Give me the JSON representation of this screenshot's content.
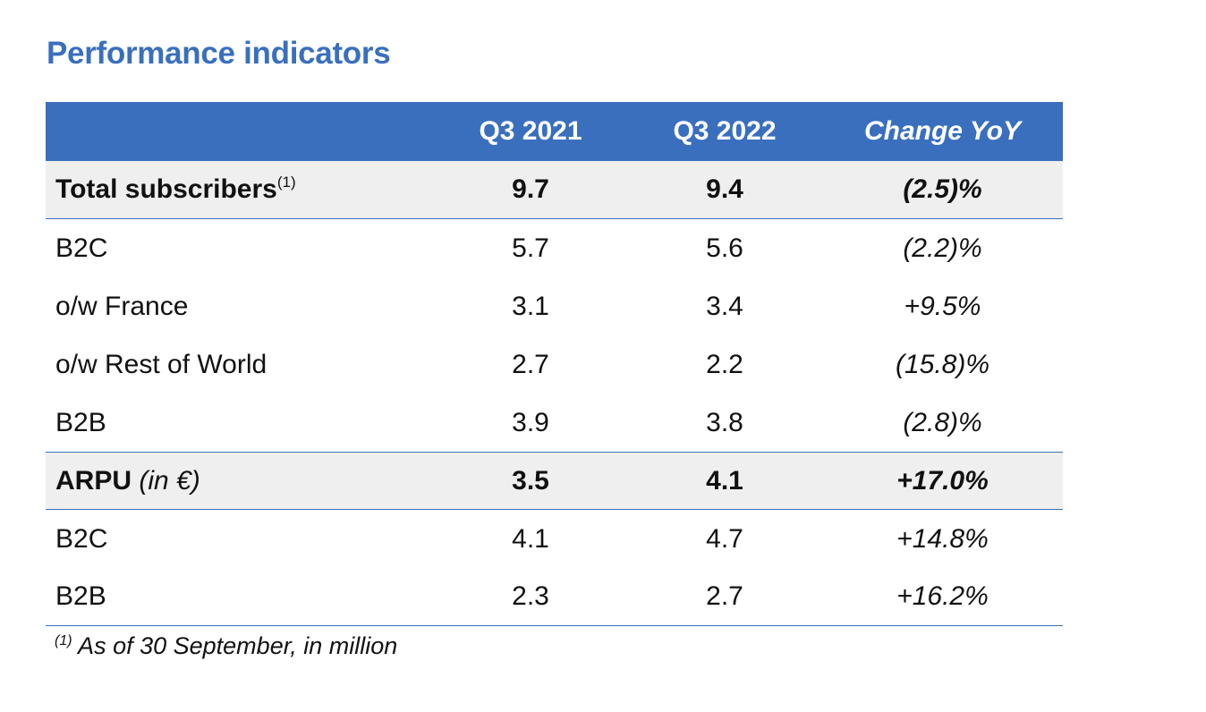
{
  "title": "Performance indicators",
  "columns": {
    "label": "",
    "q3_2021": "Q3 2021",
    "q3_2022": "Q3 2022",
    "change": "Change YoY"
  },
  "rows": [
    {
      "label": "Total subscribers",
      "superscript": "(1)",
      "q3_2021": "9.7",
      "q3_2022": "9.4",
      "change": "(2.5)%"
    },
    {
      "label": "B2C",
      "q3_2021": "5.7",
      "q3_2022": "5.6",
      "change": "(2.2)%"
    },
    {
      "label": "o/w France",
      "q3_2021": "3.1",
      "q3_2022": "3.4",
      "change": "+9.5%"
    },
    {
      "label": "o/w Rest of World",
      "q3_2021": "2.7",
      "q3_2022": "2.2",
      "change": "(15.8)%"
    },
    {
      "label": "B2B",
      "q3_2021": "3.9",
      "q3_2022": "3.8",
      "change": "(2.8)%"
    },
    {
      "label": "ARPU",
      "unit": "(in €)",
      "q3_2021": "3.5",
      "q3_2022": "4.1",
      "change": "+17.0%"
    },
    {
      "label": "B2C",
      "q3_2021": "4.1",
      "q3_2022": "4.7",
      "change": "+14.8%"
    },
    {
      "label": "B2B",
      "q3_2021": "2.3",
      "q3_2022": "2.7",
      "change": "+16.2%"
    }
  ],
  "footnote": {
    "marker": "(1)",
    "text": " As of 30 September, in million"
  },
  "colors": {
    "accent": "#3a6fbe",
    "group_row_bg": "#efefef"
  }
}
